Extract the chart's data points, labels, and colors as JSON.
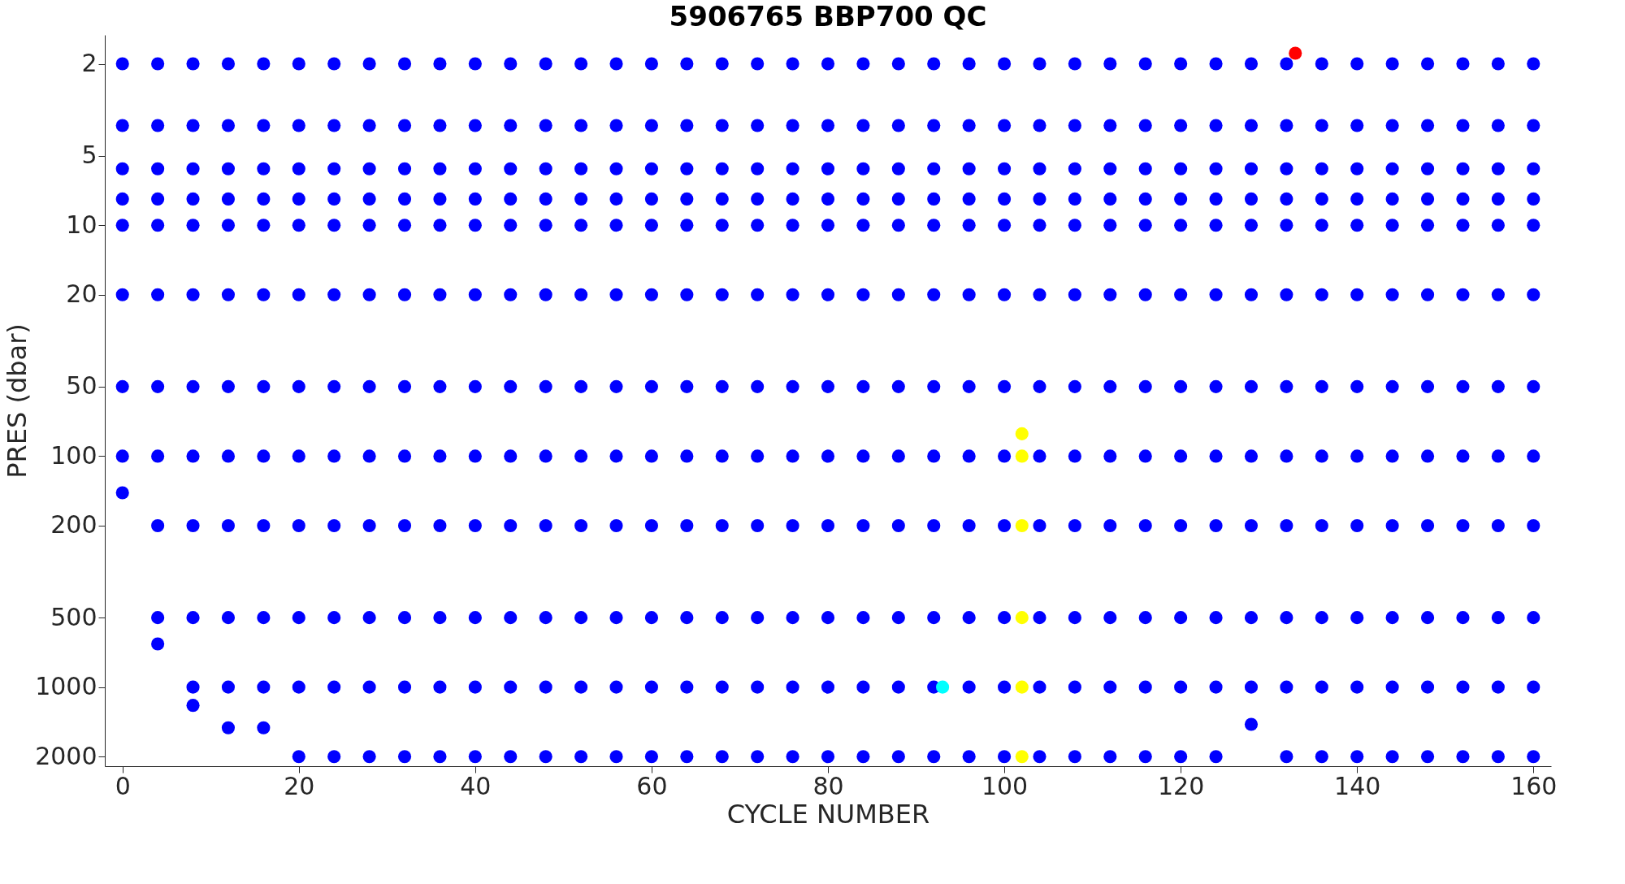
{
  "chart_data": {
    "type": "scatter",
    "title": "5906765 BBP700 QC",
    "xlabel": "CYCLE NUMBER",
    "ylabel": "PRES (dbar)",
    "x": [
      0,
      4,
      8,
      12,
      16,
      20,
      24,
      28,
      32,
      36,
      40,
      44,
      48,
      52,
      56,
      60,
      64,
      68,
      72,
      76,
      80,
      84,
      88,
      92,
      96,
      100,
      104,
      108,
      112,
      116,
      120,
      124,
      128,
      132,
      136,
      140,
      144,
      148,
      152,
      156,
      160
    ],
    "series": [
      {
        "color": "#0000ff",
        "values": [
          2,
          2,
          2,
          2,
          2,
          2,
          2,
          2,
          2,
          2,
          2,
          2,
          2,
          2,
          2,
          2,
          2,
          2,
          2,
          2,
          2,
          2,
          2,
          2,
          2,
          2,
          2,
          2,
          2,
          2,
          2,
          2,
          2,
          2,
          2,
          2,
          2,
          2,
          2,
          2,
          2
        ]
      },
      {
        "color": "#0000ff",
        "values": [
          3.7,
          3.7,
          3.7,
          3.7,
          3.7,
          3.7,
          3.7,
          3.7,
          3.7,
          3.7,
          3.7,
          3.7,
          3.7,
          3.7,
          3.7,
          3.7,
          3.7,
          3.7,
          3.7,
          3.7,
          3.7,
          3.7,
          3.7,
          3.7,
          3.7,
          3.7,
          3.7,
          3.7,
          3.7,
          3.7,
          3.7,
          3.7,
          3.7,
          3.7,
          3.7,
          3.7,
          3.7,
          3.7,
          3.7,
          3.7,
          3.7
        ]
      },
      {
        "color": "#0000ff",
        "values": [
          5.7,
          5.7,
          5.7,
          5.7,
          5.7,
          5.7,
          5.7,
          5.7,
          5.7,
          5.7,
          5.7,
          5.7,
          5.7,
          5.7,
          5.7,
          5.7,
          5.7,
          5.7,
          5.7,
          5.7,
          5.7,
          5.7,
          5.7,
          5.7,
          5.7,
          5.7,
          5.7,
          5.7,
          5.7,
          5.7,
          5.7,
          5.7,
          5.7,
          5.7,
          5.7,
          5.7,
          5.7,
          5.7,
          5.7,
          5.7,
          5.7
        ]
      },
      {
        "color": "#0000ff",
        "values": [
          7.7,
          7.7,
          7.7,
          7.7,
          7.7,
          7.7,
          7.7,
          7.7,
          7.7,
          7.7,
          7.7,
          7.7,
          7.7,
          7.7,
          7.7,
          7.7,
          7.7,
          7.7,
          7.7,
          7.7,
          7.7,
          7.7,
          7.7,
          7.7,
          7.7,
          7.7,
          7.7,
          7.7,
          7.7,
          7.7,
          7.7,
          7.7,
          7.7,
          7.7,
          7.7,
          7.7,
          7.7,
          7.7,
          7.7,
          7.7,
          7.7
        ]
      },
      {
        "color": "#0000ff",
        "values": [
          10,
          10,
          10,
          10,
          10,
          10,
          10,
          10,
          10,
          10,
          10,
          10,
          10,
          10,
          10,
          10,
          10,
          10,
          10,
          10,
          10,
          10,
          10,
          10,
          10,
          10,
          10,
          10,
          10,
          10,
          10,
          10,
          10,
          10,
          10,
          10,
          10,
          10,
          10,
          10,
          10
        ]
      },
      {
        "color": "#0000ff",
        "values": [
          20,
          20,
          20,
          20,
          20,
          20,
          20,
          20,
          20,
          20,
          20,
          20,
          20,
          20,
          20,
          20,
          20,
          20,
          20,
          20,
          20,
          20,
          20,
          20,
          20,
          20,
          20,
          20,
          20,
          20,
          20,
          20,
          20,
          20,
          20,
          20,
          20,
          20,
          20,
          20,
          20
        ]
      },
      {
        "color": "#0000ff",
        "values": [
          50,
          50,
          50,
          50,
          50,
          50,
          50,
          50,
          50,
          50,
          50,
          50,
          50,
          50,
          50,
          50,
          50,
          50,
          50,
          50,
          50,
          50,
          50,
          50,
          50,
          50,
          50,
          50,
          50,
          50,
          50,
          50,
          50,
          50,
          50,
          50,
          50,
          50,
          50,
          50,
          50
        ]
      },
      {
        "color": "#0000ff",
        "values": [
          100,
          100,
          100,
          100,
          100,
          100,
          100,
          100,
          100,
          100,
          100,
          100,
          100,
          100,
          100,
          100,
          100,
          100,
          100,
          100,
          100,
          100,
          100,
          100,
          100,
          100,
          100,
          100,
          100,
          100,
          100,
          100,
          100,
          100,
          100,
          100,
          100,
          100,
          100,
          100,
          100
        ]
      },
      {
        "color": "#0000ff",
        "values": [
          null,
          200,
          200,
          200,
          200,
          200,
          200,
          200,
          200,
          200,
          200,
          200,
          200,
          200,
          200,
          200,
          200,
          200,
          200,
          200,
          200,
          200,
          200,
          200,
          200,
          200,
          200,
          200,
          200,
          200,
          200,
          200,
          200,
          200,
          200,
          200,
          200,
          200,
          200,
          200,
          200
        ]
      },
      {
        "color": "#0000ff",
        "values": [
          null,
          500,
          500,
          500,
          500,
          500,
          500,
          500,
          500,
          500,
          500,
          500,
          500,
          500,
          500,
          500,
          500,
          500,
          500,
          500,
          500,
          500,
          500,
          500,
          500,
          500,
          500,
          500,
          500,
          500,
          500,
          500,
          500,
          500,
          500,
          500,
          500,
          500,
          500,
          500,
          500
        ]
      },
      {
        "color": "#0000ff",
        "values": [
          null,
          null,
          1000,
          1000,
          1000,
          1000,
          1000,
          1000,
          1000,
          1000,
          1000,
          1000,
          1000,
          1000,
          1000,
          1000,
          1000,
          1000,
          1000,
          1000,
          1000,
          1000,
          1000,
          1000,
          1000,
          1000,
          1000,
          1000,
          1000,
          1000,
          1000,
          1000,
          1000,
          1000,
          1000,
          1000,
          1000,
          1000,
          1000,
          1000,
          1000
        ]
      },
      {
        "color": "#0000ff",
        "values": [
          144,
          650,
          1200,
          1500,
          1500,
          2000,
          2000,
          2000,
          2000,
          2000,
          2000,
          2000,
          2000,
          2000,
          2000,
          2000,
          2000,
          2000,
          2000,
          2000,
          2000,
          2000,
          2000,
          2000,
          2000,
          2000,
          2000,
          2000,
          2000,
          2000,
          2000,
          2000,
          1450,
          2000,
          2000,
          2000,
          2000,
          2000,
          2000,
          2000,
          2000
        ]
      },
      {
        "color": "#ffff00",
        "x": [
          102,
          102,
          102,
          102,
          102,
          102
        ],
        "values": [
          80,
          100,
          200,
          500,
          1000,
          2000
        ]
      },
      {
        "color": "#00ffff",
        "x": [
          93
        ],
        "values": [
          1000
        ]
      },
      {
        "color": "#ff0000",
        "x": [
          133
        ],
        "values": [
          1.8
        ]
      }
    ],
    "xlim": [
      -2,
      162
    ],
    "xticks": [
      0,
      20,
      40,
      60,
      80,
      100,
      120,
      140,
      160
    ],
    "ylim": [
      2200,
      1.5
    ],
    "yticks": [
      2,
      5,
      10,
      20,
      50,
      100,
      200,
      500,
      1000,
      2000
    ],
    "log": "y",
    "marker": "circle",
    "grid": false
  }
}
